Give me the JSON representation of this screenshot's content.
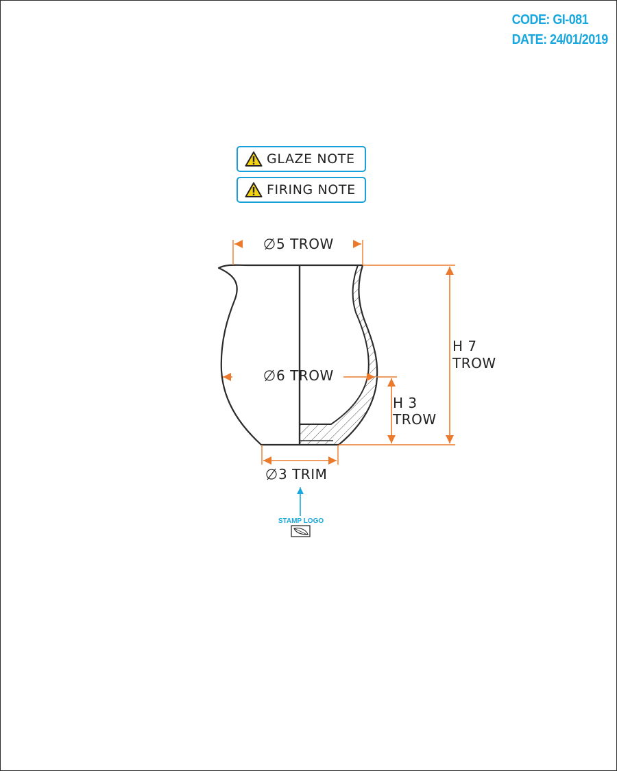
{
  "header": {
    "code": "CODE: GI-081",
    "date": "DATE: 24/01/2019"
  },
  "notes": [
    {
      "label": "GLAZE NOTE",
      "icon": "warning-icon"
    },
    {
      "label": "FIRING NOTE",
      "icon": "warning-icon"
    }
  ],
  "dimensions": {
    "top_diameter": "5 TROW",
    "belly_diameter": "6 TROW",
    "foot_diameter": "3 TRIM",
    "total_height_line1": "H 7",
    "total_height_line2": "TROW",
    "belly_height_line1": "H 3",
    "belly_height_line2": "TROW"
  },
  "stamp": {
    "label": "STAMP LOGO",
    "icon": "leaf-icon"
  },
  "colors": {
    "dimension": "#ec7a2c",
    "accent": "#19a7dd",
    "outline": "#2b2b2b",
    "warning": "#f5d20f"
  }
}
